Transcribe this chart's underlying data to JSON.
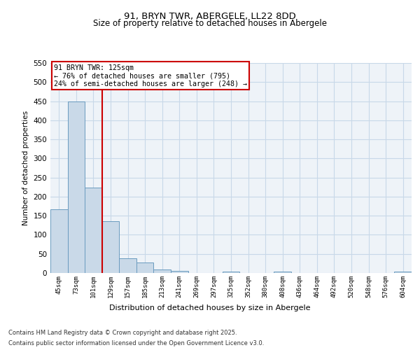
{
  "title_line1": "91, BRYN TWR, ABERGELE, LL22 8DD",
  "title_line2": "Size of property relative to detached houses in Abergele",
  "xlabel": "Distribution of detached houses by size in Abergele",
  "ylabel": "Number of detached properties",
  "categories": [
    "45sqm",
    "73sqm",
    "101sqm",
    "129sqm",
    "157sqm",
    "185sqm",
    "213sqm",
    "241sqm",
    "269sqm",
    "297sqm",
    "325sqm",
    "352sqm",
    "380sqm",
    "408sqm",
    "436sqm",
    "464sqm",
    "492sqm",
    "520sqm",
    "548sqm",
    "576sqm",
    "604sqm"
  ],
  "values": [
    167,
    450,
    224,
    135,
    38,
    27,
    10,
    5,
    0,
    0,
    3,
    0,
    0,
    3,
    0,
    0,
    0,
    0,
    0,
    0,
    3
  ],
  "bar_color": "#c9d9e8",
  "bar_edge_color": "#6a9bbf",
  "grid_color": "#c8d8e8",
  "background_color": "#eef3f8",
  "vline_color": "#cc0000",
  "annotation_text": "91 BRYN TWR: 125sqm\n← 76% of detached houses are smaller (795)\n24% of semi-detached houses are larger (248) →",
  "annotation_box_color": "#cc0000",
  "ylim": [
    0,
    550
  ],
  "yticks": [
    0,
    50,
    100,
    150,
    200,
    250,
    300,
    350,
    400,
    450,
    500,
    550
  ],
  "footer_line1": "Contains HM Land Registry data © Crown copyright and database right 2025.",
  "footer_line2": "Contains public sector information licensed under the Open Government Licence v3.0."
}
